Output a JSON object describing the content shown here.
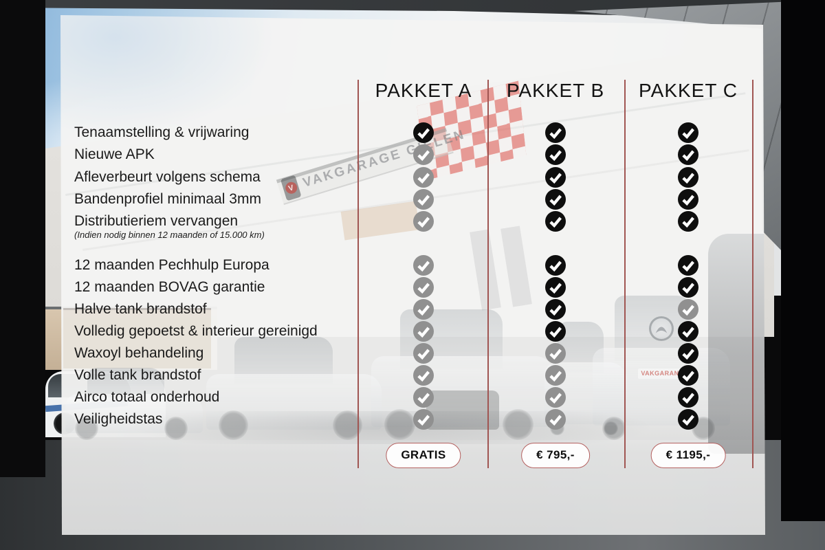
{
  "table": {
    "columns": [
      {
        "header": "PAKKET A",
        "price": "GRATIS"
      },
      {
        "header": "PAKKET B",
        "price": "€ 795,-"
      },
      {
        "header": "PAKKET C",
        "price": "€ 1195,-"
      }
    ],
    "groups": [
      {
        "rows": [
          {
            "label": "Tenaamstelling & vrijwaring",
            "checks": [
              true,
              true,
              true
            ]
          },
          {
            "label": "Nieuwe APK",
            "checks": [
              false,
              true,
              true
            ]
          },
          {
            "label": "Afleverbeurt volgens schema",
            "checks": [
              false,
              true,
              true
            ]
          },
          {
            "label": "Bandenprofiel minimaal 3mm",
            "checks": [
              false,
              true,
              true
            ]
          },
          {
            "label": "Distributieriem vervangen",
            "note": "(Indien nodig binnen 12 maanden of 15.000 km)",
            "checks": [
              false,
              true,
              true
            ]
          }
        ]
      },
      {
        "rows": [
          {
            "label": "12 maanden Pechhulp Europa",
            "checks": [
              false,
              true,
              true
            ]
          },
          {
            "label": "12 maanden BOVAG garantie",
            "checks": [
              false,
              true,
              true
            ]
          },
          {
            "label": "Halve tank brandstof",
            "checks": [
              false,
              true,
              false
            ]
          },
          {
            "label": "Volledig gepoetst & interieur gereinigd",
            "checks": [
              false,
              true,
              true
            ]
          },
          {
            "label": "Waxoyl behandeling",
            "checks": [
              false,
              false,
              true
            ]
          },
          {
            "label": "Volle tank brandstof",
            "checks": [
              false,
              false,
              true
            ]
          },
          {
            "label": "Airco totaal onderhoud",
            "checks": [
              false,
              false,
              true
            ]
          },
          {
            "label": "Veiligheidstas",
            "checks": [
              false,
              false,
              true
            ]
          }
        ]
      }
    ]
  },
  "background": {
    "sign_text": "VAKGARAGE GIELEN",
    "badge_letter": "V",
    "license_plate": "VAKGARANT"
  },
  "colors": {
    "check_included": "#0e0e0e",
    "check_excluded": "#909090",
    "column_divider": "#a05552",
    "price_border": "#b4605f"
  }
}
